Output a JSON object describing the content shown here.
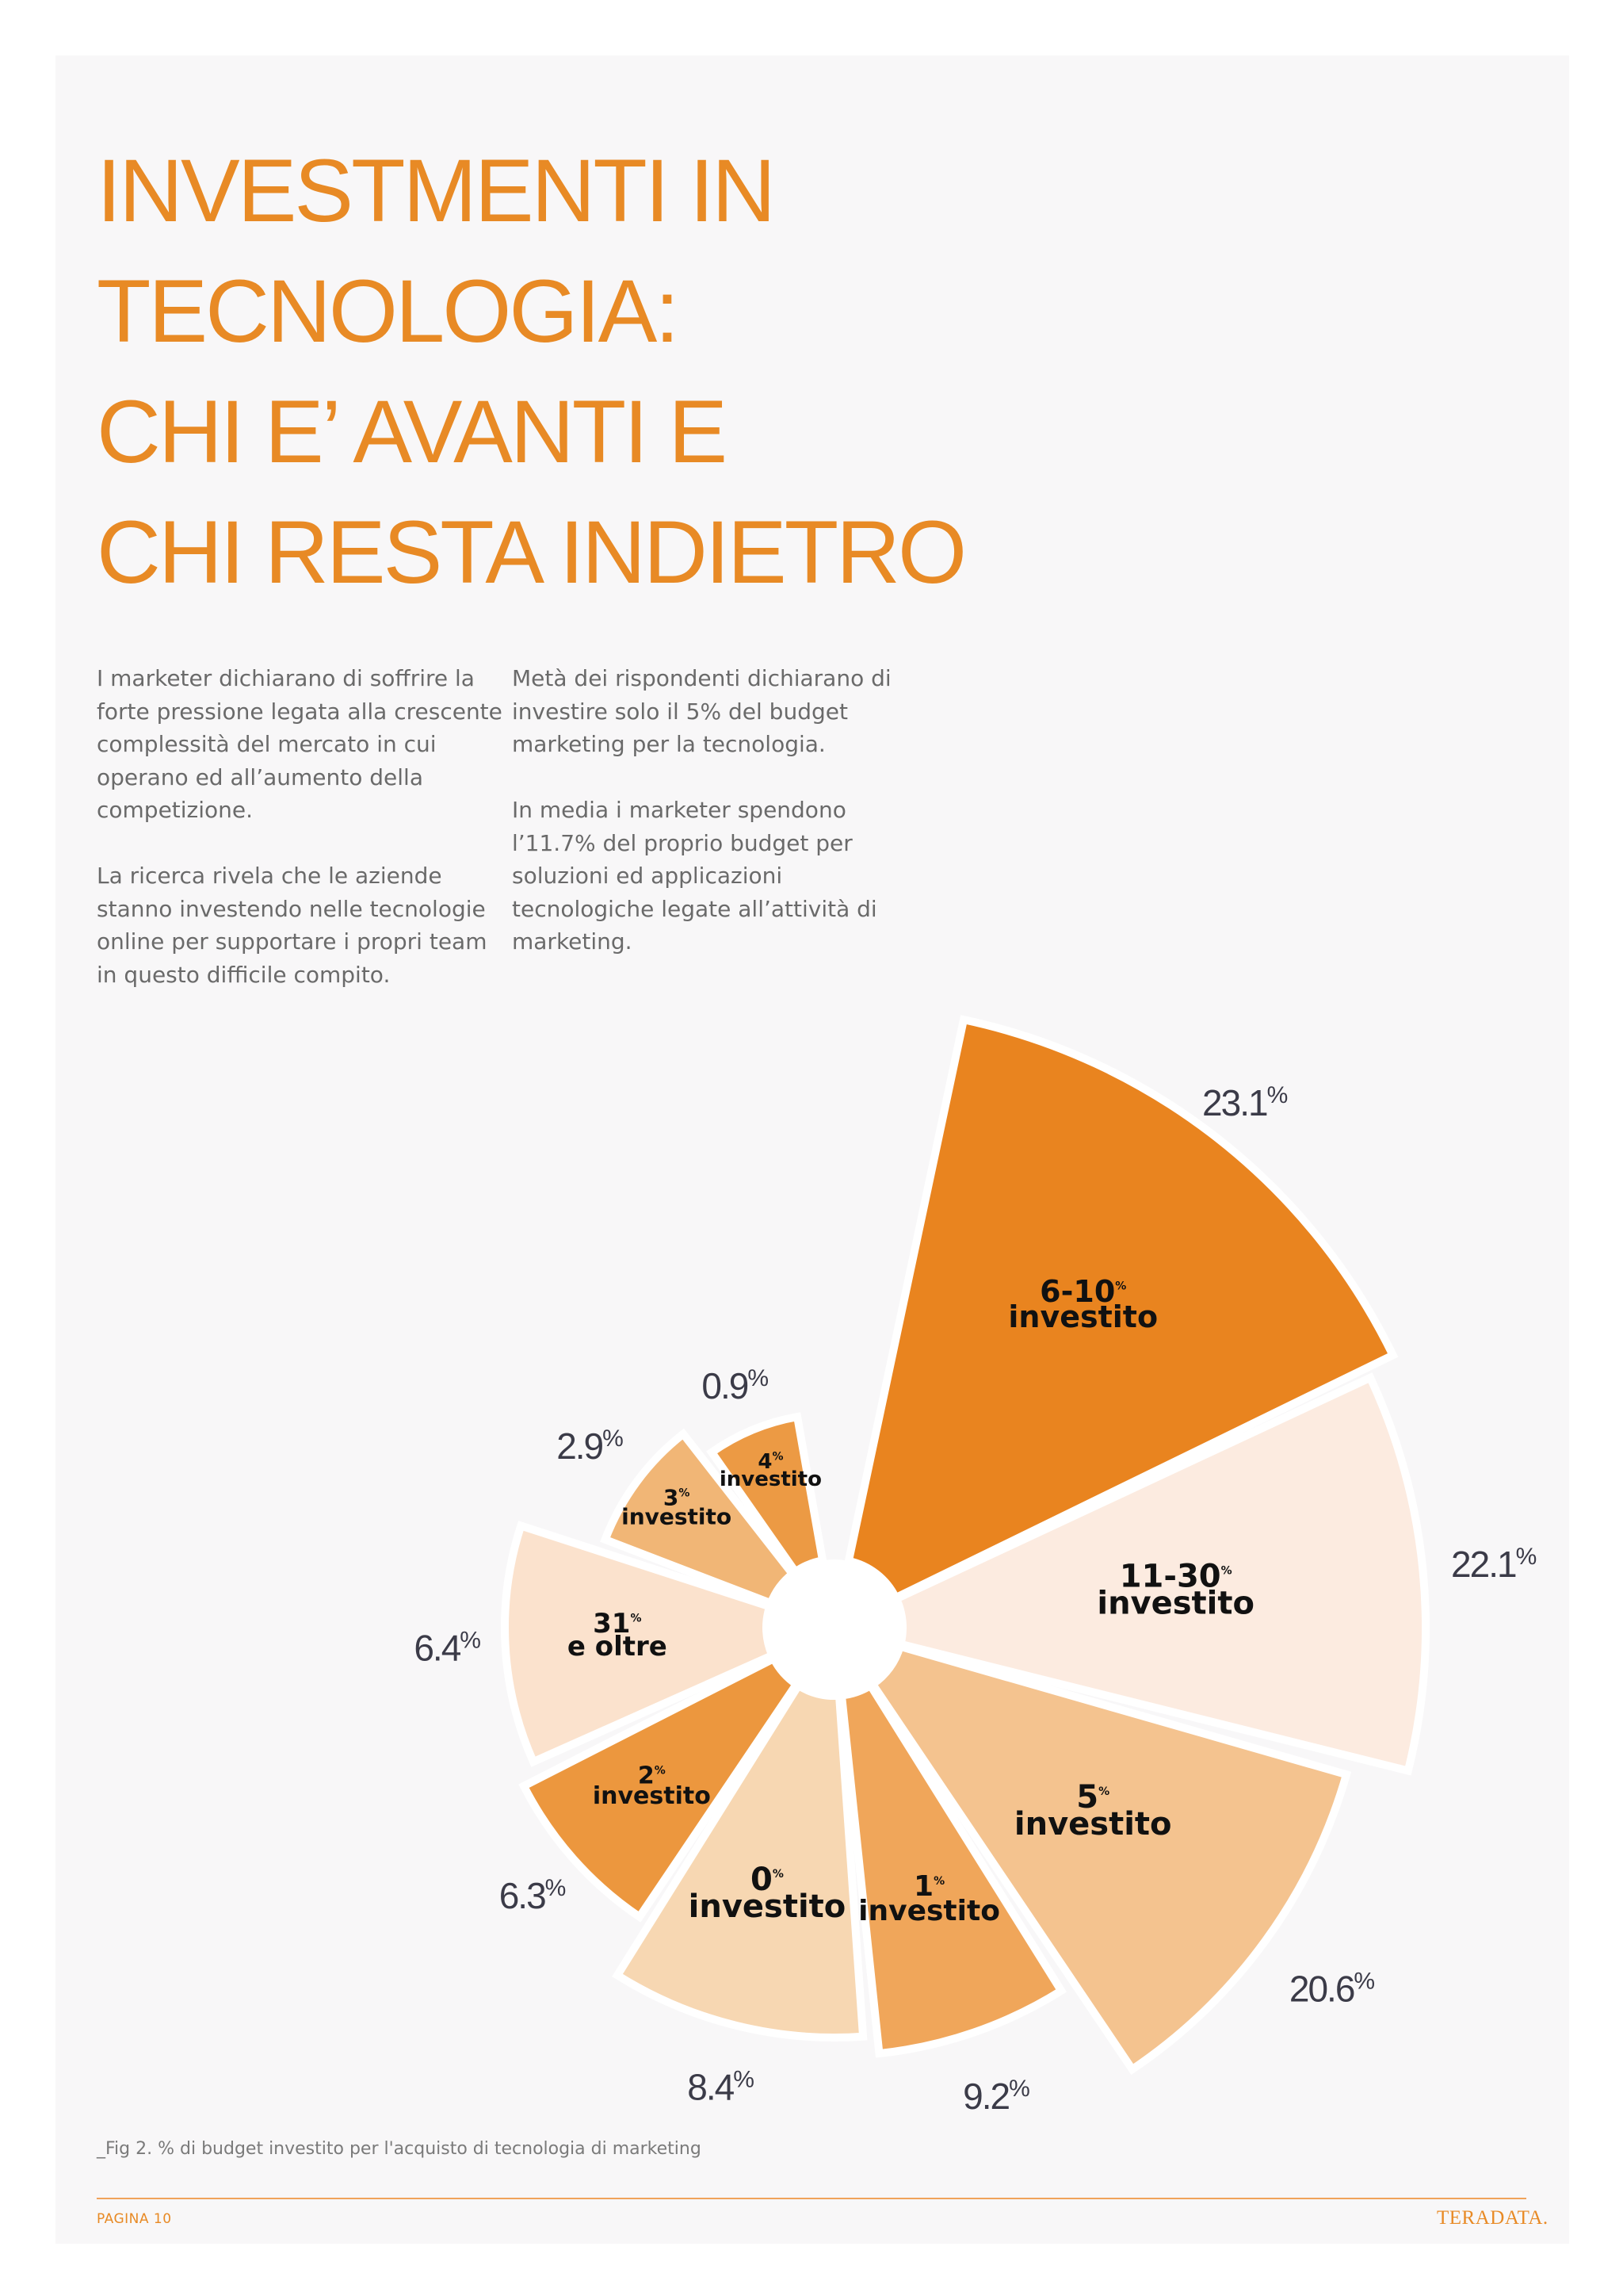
{
  "title_lines": [
    "INVESTMENTI IN",
    "TECNOLOGIA:",
    "CHI E’ AVANTI E",
    "CHI RESTA INDIETRO"
  ],
  "intro_left": [
    "I marketer dichiarano di soffrire la forte pressione legata alla crescente complessità del mercato in cui operano ed all’aumento della competizione.",
    "La ricerca rivela che le aziende stanno investendo nelle tecnologie online per supportare i propri team in questo difficile compito."
  ],
  "intro_right": [
    "Metà dei rispondenti dichiarano di investire solo il 5% del budget marketing per la tecnologia.",
    "In media i marketer spendono l’11.7% del proprio budget per soluzioni ed applicazioni tecnologiche legate all’attività di marketing."
  ],
  "caption": "_Fig 2. % di budget investito per l'acquisto di tecnologia di marketing",
  "footer": {
    "page_label": "PAGINA 10",
    "brand": "TERADATA."
  },
  "colors": {
    "title": "#e88a25",
    "accent_dark": "#e9841f",
    "gap": "#ffffff"
  },
  "chart_data": {
    "type": "pie",
    "variant": "polar-area",
    "title": "",
    "unit": "%",
    "slices": [
      {
        "category": "6-10",
        "category_sup": "%",
        "category_line2": "investito",
        "value": 23.1,
        "value_text": "23.1",
        "color": "#e9841f"
      },
      {
        "category": "11-30",
        "category_sup": "%",
        "category_line2": "investito",
        "value": 22.1,
        "value_text": "22.1",
        "color": "#fcebe0"
      },
      {
        "category": "5",
        "category_sup": "%",
        "category_line2": "investito",
        "value": 20.6,
        "value_text": "20.6",
        "color": "#f4c38f"
      },
      {
        "category": "1",
        "category_sup": "%",
        "category_line2": "investito",
        "value": 9.2,
        "value_text": "9.2",
        "color": "#f0a65a"
      },
      {
        "category": "0",
        "category_sup": "%",
        "category_line2": "investito",
        "value": 8.4,
        "value_text": "8.4",
        "color": "#f7d7b2"
      },
      {
        "category": "2",
        "category_sup": "%",
        "category_line2": "investito",
        "value": 6.3,
        "value_text": "6.3",
        "color": "#ec973e"
      },
      {
        "category": "31",
        "category_sup": "%",
        "category_line2": "e oltre",
        "value": 6.4,
        "value_text": "6.4",
        "color": "#fbe2cd"
      },
      {
        "category": "3",
        "category_sup": "%",
        "category_line2": "investito",
        "value": 2.9,
        "value_text": "2.9",
        "color": "#f1b676"
      },
      {
        "category": "4",
        "category_sup": "%",
        "category_line2": "investito",
        "value": 0.9,
        "value_text": "0.9",
        "color": "#ec9a44"
      }
    ]
  }
}
